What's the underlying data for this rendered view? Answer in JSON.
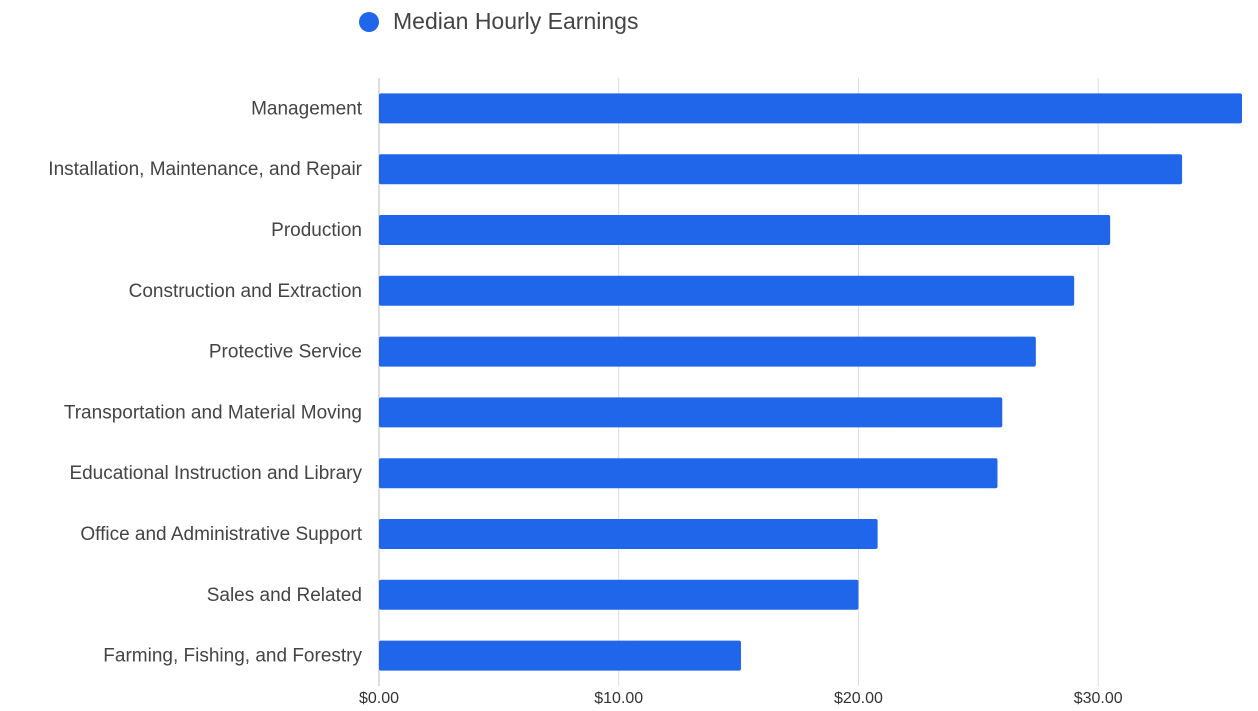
{
  "chart_data": {
    "type": "hbar",
    "categories": [
      "Management",
      "Installation, Maintenance, and Repair",
      "Production",
      "Construction and Extraction",
      "Protective Service",
      "Transportation and Material Moving",
      "Educational Instruction and Library",
      "Office and Administrative Support",
      "Sales and Related",
      "Farming, Fishing, and Forestry"
    ],
    "series": [
      {
        "name": "Median Hourly Earnings",
        "color": "#1f66ea",
        "values": [
          36.0,
          33.5,
          30.5,
          29.0,
          27.4,
          26.0,
          25.8,
          20.8,
          20.0,
          15.1
        ]
      }
    ],
    "xlim": [
      0,
      36
    ],
    "xticks": [
      {
        "value": 0,
        "label": "$0.00"
      },
      {
        "value": 10,
        "label": "$10.00"
      },
      {
        "value": 20,
        "label": "$20.00"
      },
      {
        "value": 30,
        "label": "$30.00"
      }
    ],
    "grid": true,
    "legend": "top"
  }
}
